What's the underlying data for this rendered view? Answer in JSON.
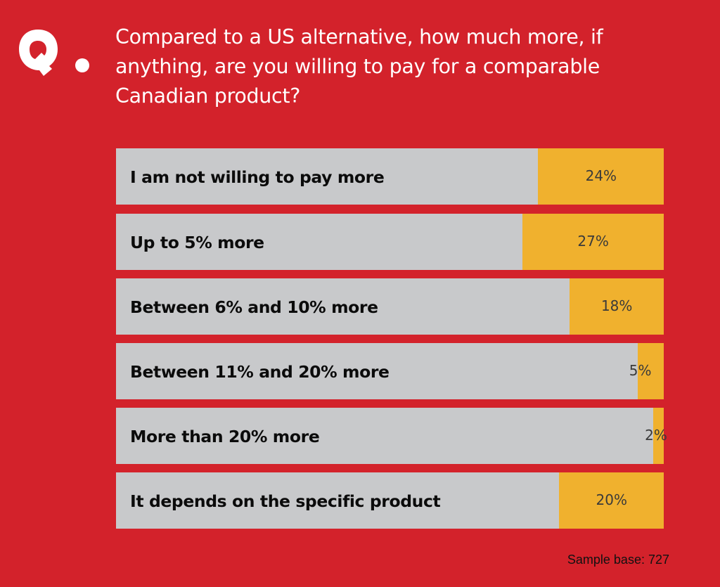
{
  "logo_text": "Q.",
  "chart_data": {
    "type": "bar",
    "orientation": "horizontal",
    "title": "Compared to a US alternative, how much more, if anything, are you willing to pay for a comparable Canadian product?",
    "categories": [
      "I am not willing to pay more",
      "Up to 5% more",
      "Between 6% and 10% more",
      "Between 11% and 20% more",
      "More than 20% more",
      "It depends on the specific product"
    ],
    "values": [
      24,
      27,
      18,
      5,
      2,
      20
    ],
    "value_labels": [
      "24%",
      "27%",
      "18%",
      "5%",
      "2%",
      "20%"
    ],
    "unit": "%",
    "xlim": [
      0,
      100
    ],
    "grid": false,
    "footnote": "Sample base: 727",
    "colors": {
      "background": "#d3222b",
      "track": "#c8c9cb",
      "bar": "#f0b12e"
    }
  }
}
